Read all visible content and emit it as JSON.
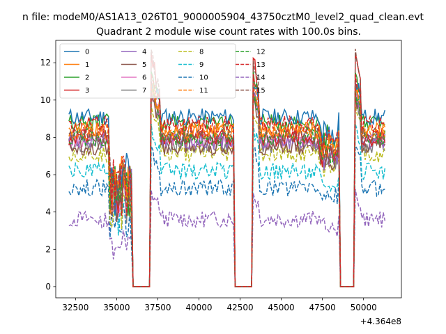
{
  "chart_data": {
    "type": "line",
    "suptitle": "n file: modeM0/AS1A13_026T01_9000005904_43750cztM0_level2_quad_clean.evt",
    "title": "Quadrant 2 module wise count rates with 100.0s bins.",
    "xlabel": "",
    "ylabel": "",
    "x_offset_label": "+4.364e8",
    "xlim": [
      31300,
      52300
    ],
    "ylim": [
      -0.6,
      13.2
    ],
    "x_ticks": [
      32500,
      35000,
      37500,
      40000,
      42500,
      45000,
      47500,
      50000
    ],
    "x_tick_labels": [
      "32500",
      "35000",
      "37500",
      "40000",
      "42500",
      "45000",
      "47500",
      "50000"
    ],
    "y_ticks": [
      0,
      2,
      4,
      6,
      8,
      10,
      12
    ],
    "y_tick_labels": [
      "0",
      "2",
      "4",
      "6",
      "8",
      "10",
      "12"
    ],
    "grid": false,
    "legend_position": "top-left",
    "legend_columns": 4,
    "gti_intervals": [
      [
        32100,
        35950
      ],
      [
        37100,
        42100
      ],
      [
        43250,
        48500
      ],
      [
        49500,
        51300
      ]
    ],
    "x_range": [
      32100,
      51300
    ],
    "bin_width": 100,
    "series": [
      {
        "name": "0",
        "color": "#1f77b4",
        "dash": "solid",
        "level": 9.1,
        "peak": 11.0
      },
      {
        "name": "1",
        "color": "#ff7f0e",
        "dash": "solid",
        "level": 8.4,
        "peak": 10.8
      },
      {
        "name": "2",
        "color": "#2ca02c",
        "dash": "solid",
        "level": 8.8,
        "peak": 11.5
      },
      {
        "name": "3",
        "color": "#d62728",
        "dash": "solid",
        "level": 8.0,
        "peak": 12.5
      },
      {
        "name": "4",
        "color": "#9467bd",
        "dash": "solid",
        "level": 7.8,
        "peak": 10.5
      },
      {
        "name": "5",
        "color": "#8c564b",
        "dash": "solid",
        "level": 7.5,
        "peak": 10.3
      },
      {
        "name": "6",
        "color": "#e377c2",
        "dash": "solid",
        "level": 7.9,
        "peak": 10.6
      },
      {
        "name": "7",
        "color": "#7f7f7f",
        "dash": "solid",
        "level": 7.6,
        "peak": 10.4
      },
      {
        "name": "8",
        "color": "#bcbd22",
        "dash": "dashed",
        "level": 7.1,
        "peak": 9.6
      },
      {
        "name": "9",
        "color": "#17becf",
        "dash": "dashed",
        "level": 6.2,
        "peak": 8.6
      },
      {
        "name": "10",
        "color": "#1f77b4",
        "dash": "dashed",
        "level": 5.3,
        "peak": 7.4
      },
      {
        "name": "11",
        "color": "#ff7f0e",
        "dash": "dashed",
        "level": 8.3,
        "peak": 10.7
      },
      {
        "name": "12",
        "color": "#2ca02c",
        "dash": "dashed",
        "level": 8.0,
        "peak": 10.4
      },
      {
        "name": "13",
        "color": "#d62728",
        "dash": "dashed",
        "level": 8.7,
        "peak": 11.2
      },
      {
        "name": "14",
        "color": "#9467bd",
        "dash": "dashed",
        "level": 3.6,
        "peak": 5.0
      },
      {
        "name": "15",
        "color": "#8c564b",
        "dash": "dashed",
        "level": 8.1,
        "peak": 12.5
      }
    ]
  }
}
